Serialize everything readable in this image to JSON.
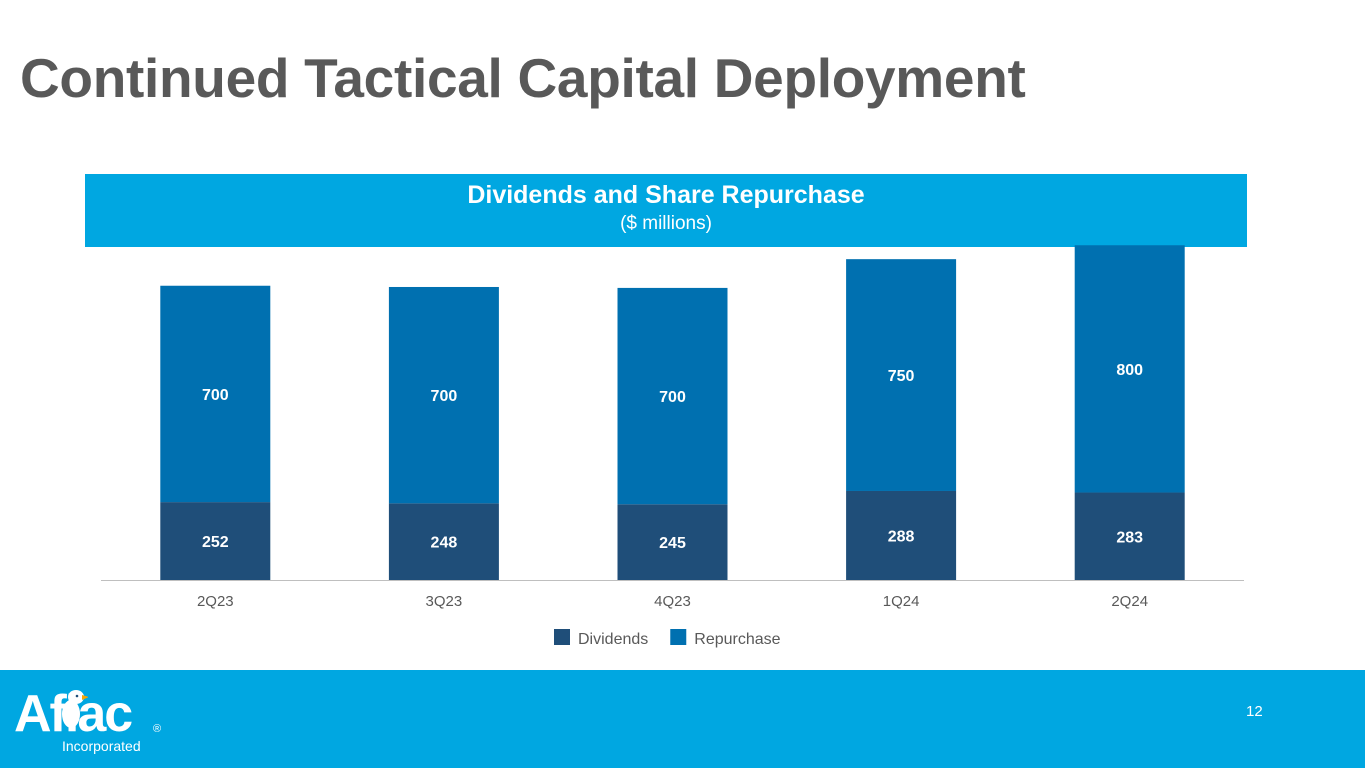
{
  "slide": {
    "title": "Continued Tactical Capital Deployment",
    "page_number": "12"
  },
  "chart_header": {
    "title": "Dividends and Share Repurchase",
    "subtitle": "($ millions)"
  },
  "footer": {
    "logo_text": "Aflac",
    "logo_registered": "®",
    "logo_subtext": "Incorporated"
  },
  "colors": {
    "dividends": "#1f4e79",
    "repurchase": "#0070b0",
    "accent": "#00a7e1",
    "title": "#595959"
  },
  "chart_data": {
    "type": "bar",
    "stacked": true,
    "title": "Dividends and Share Repurchase",
    "subtitle": "($ millions)",
    "categories": [
      "2Q23",
      "3Q23",
      "4Q23",
      "1Q24",
      "2Q24"
    ],
    "series": [
      {
        "name": "Dividends",
        "values": [
          252,
          248,
          245,
          288,
          283
        ]
      },
      {
        "name": "Repurchase",
        "values": [
          700,
          700,
          700,
          750,
          800
        ]
      }
    ],
    "xlabel": "",
    "ylabel": "",
    "ylim": [
      0,
      1100
    ],
    "grid": false,
    "legend": "bottom-center"
  }
}
